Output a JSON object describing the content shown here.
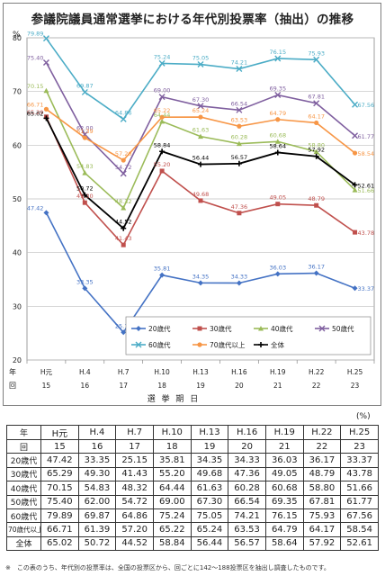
{
  "chart_data": {
    "type": "line",
    "title": "参議院議員通常選挙における年代別投票率（抽出）の推移",
    "ylabel": "%",
    "xlabel": "選 挙 期 日",
    "ylim": [
      20,
      80
    ],
    "yticks": [
      20,
      30,
      40,
      50,
      60,
      70,
      80
    ],
    "row_labels": {
      "year": "年",
      "kai": "回"
    },
    "categories": [
      "H元",
      "H.4",
      "H.7",
      "H.10",
      "H.13",
      "H.16",
      "H.19",
      "H.22",
      "H.25"
    ],
    "kai": [
      "15",
      "16",
      "17",
      "18",
      "19",
      "20",
      "21",
      "22",
      "23"
    ],
    "grid": true,
    "legend_position": "bottom",
    "series": [
      {
        "name": "20歳代",
        "color": "#4472c4",
        "marker": "diamond",
        "values": [
          47.42,
          33.35,
          25.15,
          35.81,
          34.35,
          34.33,
          36.03,
          36.17,
          33.37
        ]
      },
      {
        "name": "30歳代",
        "color": "#c0504d",
        "marker": "square",
        "values": [
          65.29,
          49.3,
          41.43,
          55.2,
          49.68,
          47.36,
          49.05,
          48.79,
          43.78
        ]
      },
      {
        "name": "40歳代",
        "color": "#9bbb59",
        "marker": "triangle",
        "values": [
          70.15,
          54.83,
          48.32,
          64.44,
          61.63,
          60.28,
          60.68,
          58.8,
          51.66
        ]
      },
      {
        "name": "50歳代",
        "color": "#7f5f9f",
        "marker": "x",
        "values": [
          75.4,
          62.0,
          54.72,
          69.0,
          67.3,
          66.54,
          69.35,
          67.81,
          61.77
        ]
      },
      {
        "name": "60歳代",
        "color": "#4bacc6",
        "marker": "x",
        "values": [
          79.89,
          69.87,
          64.86,
          75.24,
          75.05,
          74.21,
          76.15,
          75.93,
          67.56
        ]
      },
      {
        "name": "70歳代以上",
        "color": "#f79646",
        "marker": "circle",
        "values": [
          66.71,
          61.39,
          57.2,
          65.22,
          65.24,
          63.53,
          64.79,
          64.17,
          58.54
        ]
      },
      {
        "name": "全体",
        "color": "#000000",
        "marker": "plus",
        "values": [
          65.02,
          50.72,
          44.52,
          58.84,
          56.44,
          56.57,
          58.64,
          57.92,
          52.61
        ]
      }
    ]
  },
  "table": {
    "unit": "(%)",
    "header_year": [
      "年",
      "H元",
      "H.4",
      "H.7",
      "H.10",
      "H.13",
      "H.16",
      "H.19",
      "H.22",
      "H.25"
    ],
    "header_kai": [
      "回",
      "15",
      "16",
      "17",
      "18",
      "19",
      "20",
      "21",
      "22",
      "23"
    ],
    "rows": [
      {
        "label": "20歳代",
        "values": [
          "47.42",
          "33.35",
          "25.15",
          "35.81",
          "34.35",
          "34.33",
          "36.03",
          "36.17",
          "33.37"
        ]
      },
      {
        "label": "30歳代",
        "values": [
          "65.29",
          "49.30",
          "41.43",
          "55.20",
          "49.68",
          "47.36",
          "49.05",
          "48.79",
          "43.78"
        ]
      },
      {
        "label": "40歳代",
        "values": [
          "70.15",
          "54.83",
          "48.32",
          "64.44",
          "61.63",
          "60.28",
          "60.68",
          "58.80",
          "51.66"
        ]
      },
      {
        "label": "50歳代",
        "values": [
          "75.40",
          "62.00",
          "54.72",
          "69.00",
          "67.30",
          "66.54",
          "69.35",
          "67.81",
          "61.77"
        ]
      },
      {
        "label": "60歳代",
        "values": [
          "79.89",
          "69.87",
          "64.86",
          "75.24",
          "75.05",
          "74.21",
          "76.15",
          "75.93",
          "67.56"
        ]
      },
      {
        "label": "70歳代以上",
        "values": [
          "66.71",
          "61.39",
          "57.20",
          "65.22",
          "65.24",
          "63.53",
          "64.79",
          "64.17",
          "58.54"
        ]
      },
      {
        "label": "全体",
        "values": [
          "65.02",
          "50.72",
          "44.52",
          "58.84",
          "56.44",
          "56.57",
          "58.64",
          "57.92",
          "52.61"
        ]
      }
    ]
  },
  "note": "※　この表のうち、年代別の投票率は、全国の投票区から、回ごとに142～188投票区を抽出し調査したものです。"
}
